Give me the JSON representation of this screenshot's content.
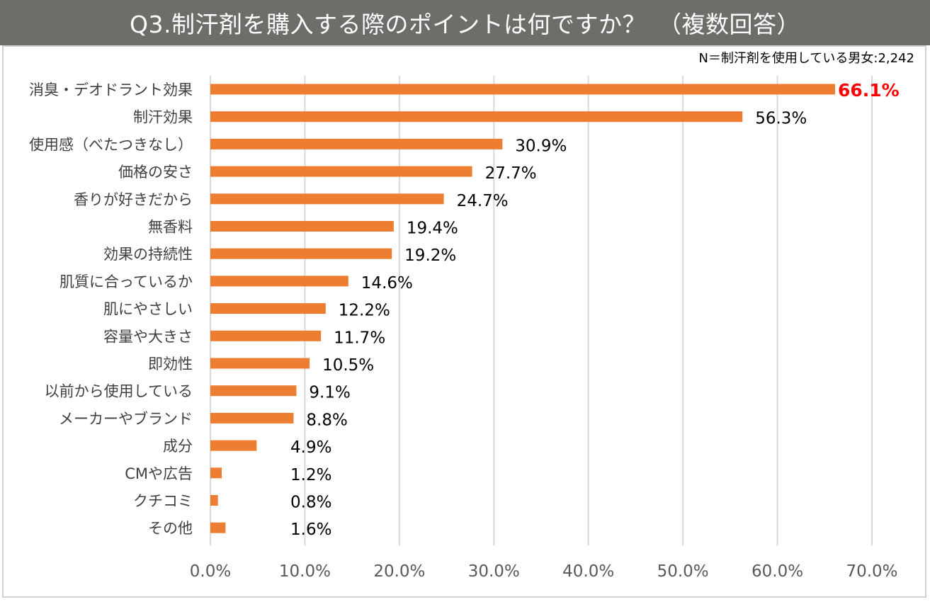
{
  "title": "Q3.制汗剤を購入する際のポイントは何ですか？　（複数回答）",
  "note": "N＝制汗剤を使用している男女:2,242",
  "colors": {
    "title_bg": "#6f6d6a",
    "bar": "#ed7d31",
    "highlight_label": "#ff0000",
    "grid": "#d9d9d9",
    "axis_text": "#595959"
  },
  "chart_data": {
    "type": "bar",
    "orientation": "horizontal",
    "title": "Q3.制汗剤を購入する際のポイントは何ですか？　（複数回答）",
    "categories": [
      "消臭・デオドラント効果",
      "制汗効果",
      "使用感（べたつきなし）",
      "価格の安さ",
      "香りが好きだから",
      "無香料",
      "効果の持続性",
      "肌質に合っているか",
      "肌にやさしい",
      "容量や大きさ",
      "即効性",
      "以前から使用している",
      "メーカーやブランド",
      "成分",
      "CMや広告",
      "クチコミ",
      "その他"
    ],
    "values": [
      66.1,
      56.3,
      30.9,
      27.7,
      24.7,
      19.4,
      19.2,
      14.6,
      12.2,
      11.7,
      10.5,
      9.1,
      8.8,
      4.9,
      1.2,
      0.8,
      1.6
    ],
    "value_labels": [
      "66.1%",
      "56.3%",
      "30.9%",
      "27.7%",
      "24.7%",
      "19.4%",
      "19.2%",
      "14.6%",
      "12.2%",
      "11.7%",
      "10.5%",
      "9.1%",
      "8.8%",
      "4.9%",
      "1.2%",
      "0.8%",
      "1.6%"
    ],
    "xlim": [
      0,
      70
    ],
    "x_ticks": [
      0,
      10,
      20,
      30,
      40,
      50,
      60,
      70
    ],
    "x_tick_labels": [
      "0.0%",
      "10.0%",
      "20.0%",
      "30.0%",
      "40.0%",
      "50.0%",
      "60.0%",
      "70.0%"
    ],
    "grid": true,
    "legend": "none",
    "highlight_index": 0
  }
}
